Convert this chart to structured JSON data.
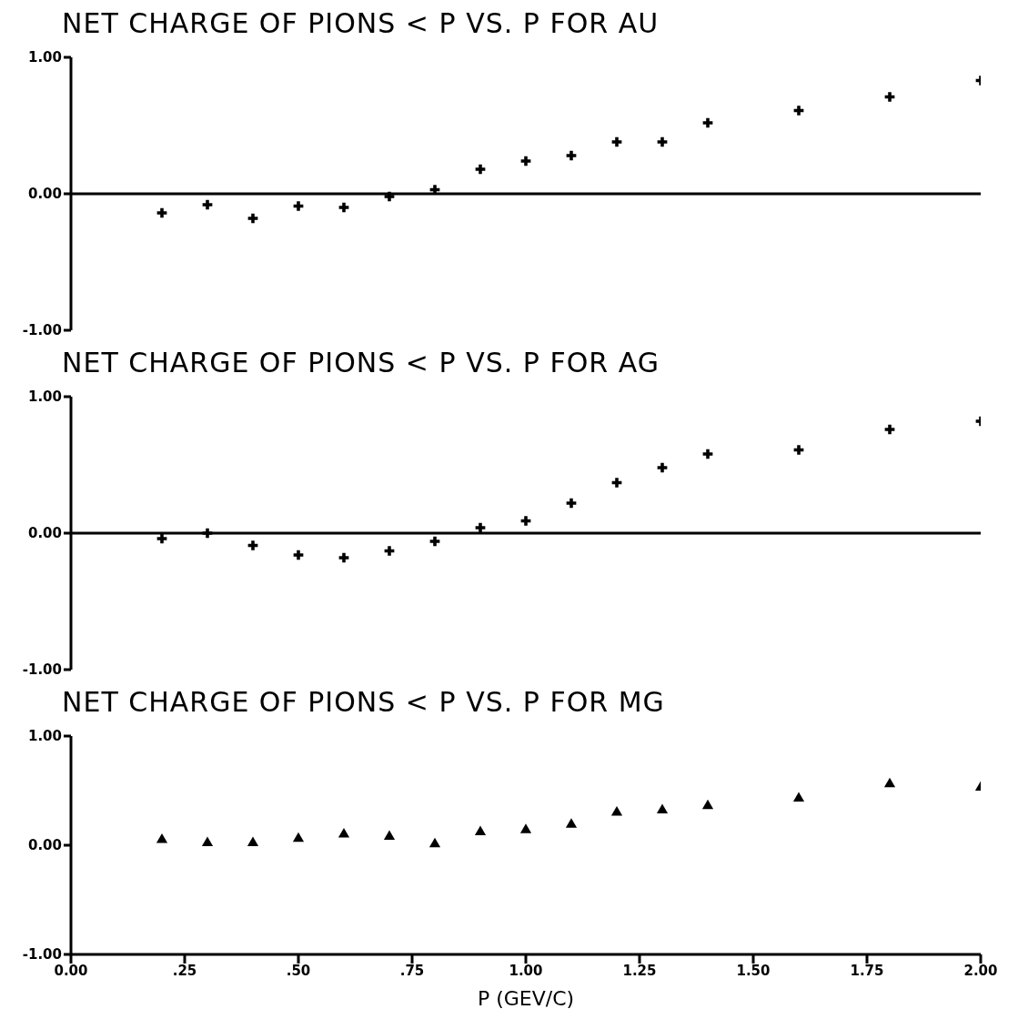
{
  "chart_data": [
    {
      "type": "scatter",
      "title": "NET CHARGE OF PIONS < P VS. P FOR AU",
      "x": [
        0.2,
        0.3,
        0.4,
        0.5,
        0.6,
        0.7,
        0.8,
        0.9,
        1.0,
        1.1,
        1.2,
        1.3,
        1.4,
        1.6,
        1.8,
        2.0
      ],
      "series": [
        {
          "color": "#000000",
          "values": [
            -0.14,
            -0.08,
            -0.18,
            -0.09,
            -0.1,
            -0.02,
            0.03,
            0.18,
            0.24,
            0.28,
            0.38,
            0.38,
            0.52,
            0.61,
            0.71,
            0.83
          ]
        }
      ],
      "marker": "cross",
      "xlim": [
        0,
        2
      ],
      "ylim": [
        -1,
        1
      ],
      "yticks": [
        {
          "value": -1,
          "label": "-1.00"
        },
        {
          "value": 0,
          "label": "0.00"
        },
        {
          "value": 1,
          "label": "1.00"
        }
      ],
      "tick_labels": "y",
      "ref_lines": [
        {
          "axis": "y",
          "value": 0
        }
      ],
      "grid": false,
      "legend": false
    },
    {
      "type": "scatter",
      "title": "NET CHARGE OF PIONS < P VS. P FOR AG",
      "x": [
        0.2,
        0.3,
        0.4,
        0.5,
        0.6,
        0.7,
        0.8,
        0.9,
        1.0,
        1.1,
        1.2,
        1.3,
        1.4,
        1.6,
        1.8,
        2.0
      ],
      "series": [
        {
          "color": "#000000",
          "values": [
            -0.04,
            0.0,
            -0.09,
            -0.16,
            -0.18,
            -0.13,
            -0.06,
            0.04,
            0.09,
            0.22,
            0.37,
            0.48,
            0.58,
            0.61,
            0.76,
            0.82
          ]
        }
      ],
      "marker": "cross",
      "xlim": [
        0,
        2
      ],
      "ylim": [
        -1,
        1
      ],
      "yticks": [
        {
          "value": -1,
          "label": "-1.00"
        },
        {
          "value": 0,
          "label": "0.00"
        },
        {
          "value": 1,
          "label": "1.00"
        }
      ],
      "tick_labels": "y",
      "ref_lines": [
        {
          "axis": "y",
          "value": 0
        }
      ],
      "grid": false,
      "legend": false
    },
    {
      "type": "scatter",
      "title": "NET CHARGE OF PIONS < P VS. P FOR MG",
      "xlabel": "P (GEV/C)",
      "x": [
        0.2,
        0.3,
        0.4,
        0.5,
        0.6,
        0.7,
        0.8,
        0.9,
        1.0,
        1.1,
        1.2,
        1.3,
        1.4,
        1.6,
        1.8,
        2.0
      ],
      "series": [
        {
          "color": "#000000",
          "values": [
            0.05,
            0.02,
            0.02,
            0.06,
            0.1,
            0.08,
            0.01,
            0.12,
            0.14,
            0.19,
            0.3,
            0.32,
            0.36,
            0.43,
            0.56,
            0.53
          ]
        }
      ],
      "marker": "triangle",
      "xlim": [
        0,
        2
      ],
      "xticks": [
        {
          "value": 0,
          "label": "0.00"
        },
        {
          "value": 0.25,
          "label": ".25"
        },
        {
          "value": 0.5,
          "label": ".50"
        },
        {
          "value": 0.75,
          "label": ".75"
        },
        {
          "value": 1,
          "label": "1.00"
        },
        {
          "value": 1.25,
          "label": "1.25"
        },
        {
          "value": 1.5,
          "label": "1.50"
        },
        {
          "value": 1.75,
          "label": "1.75"
        },
        {
          "value": 2,
          "label": "2.00"
        }
      ],
      "ylim": [
        -1,
        1
      ],
      "yticks": [
        {
          "value": -1,
          "label": "-1.00"
        },
        {
          "value": 0,
          "label": "0.00"
        },
        {
          "value": 1,
          "label": "1.00"
        }
      ],
      "grid": false,
      "legend": false
    }
  ]
}
